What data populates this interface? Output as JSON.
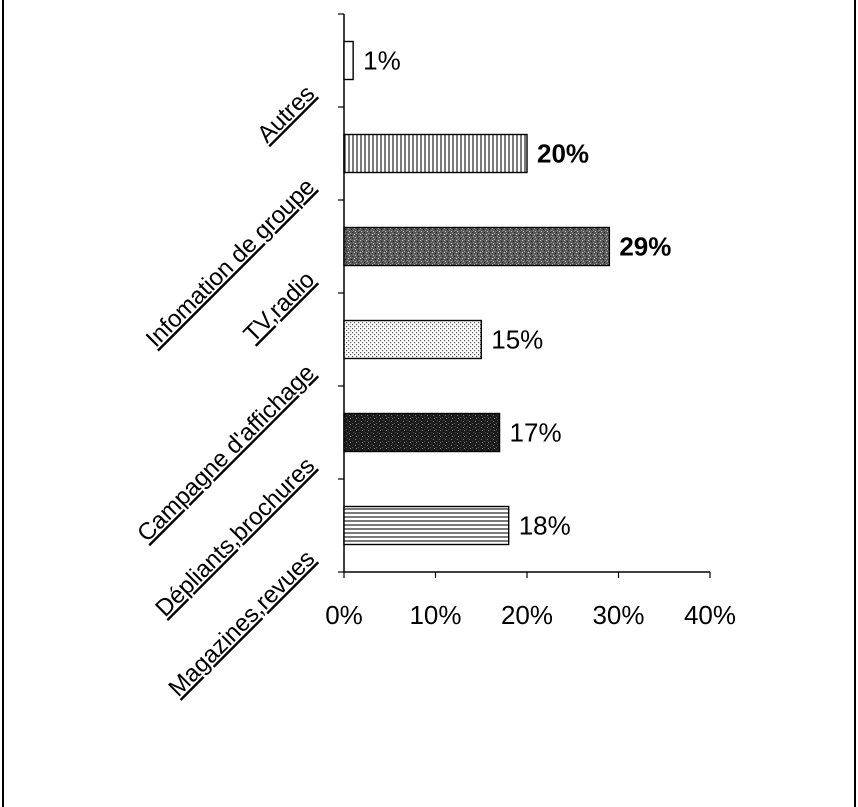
{
  "chart_data": {
    "type": "bar",
    "orientation": "horizontal",
    "categories": [
      "Autres",
      "Infomation de groupe",
      "TV,radio",
      "Campagne d'affichage",
      "Dépliants,brochures",
      "Magazines,revues"
    ],
    "values": [
      1,
      20,
      29,
      15,
      17,
      18
    ],
    "data_labels": [
      "1%",
      "20%",
      "29%",
      "15%",
      "17%",
      "18%"
    ],
    "bold_labels": [
      false,
      true,
      true,
      false,
      false,
      false
    ],
    "patterns": [
      "blank",
      "vertical-lines",
      "dark-stipple",
      "light-dots",
      "black-stipple",
      "horizontal-lines"
    ],
    "x_ticks": [
      "0%",
      "10%",
      "20%",
      "30%",
      "40%"
    ],
    "xlim": [
      0,
      40
    ],
    "title": "",
    "xlabel": "",
    "ylabel": "",
    "grid": false,
    "legend": "none"
  }
}
